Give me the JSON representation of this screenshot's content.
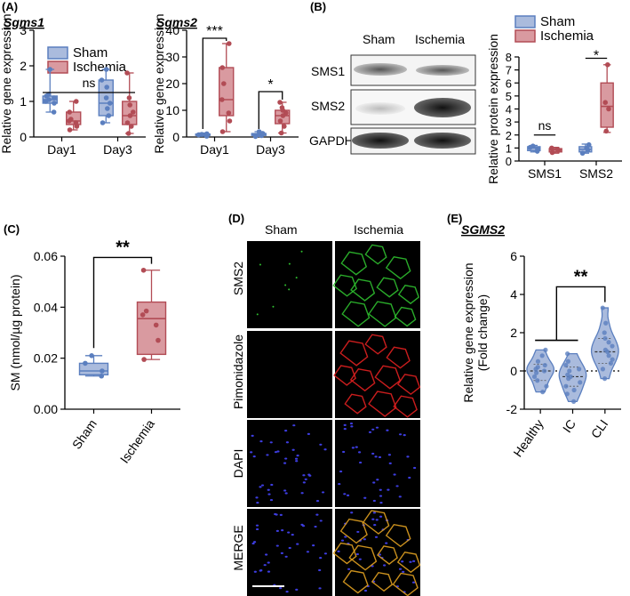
{
  "colors": {
    "sham": "#5b7fbf",
    "sham_fill": "#aabbdd",
    "ischemia": "#b24c55",
    "ischemia_fill": "#d99aa0",
    "green": "#2fbf2f",
    "red": "#e02020",
    "blue": "#3a3ad8"
  },
  "panels": {
    "A": "(A)",
    "B": "(B)",
    "C": "(C)",
    "D": "(D)",
    "E": "(E)"
  },
  "legend": {
    "sham": "Sham",
    "ischemia": "Ischemia"
  },
  "blot": {
    "columns": [
      "Sham",
      "Ischemia"
    ],
    "rows": [
      "SMS1",
      "SMS2",
      "GAPDH"
    ]
  },
  "micro": {
    "columns": [
      "Sham",
      "Ischemia"
    ],
    "rows": [
      "SMS2",
      "Pimonidazole",
      "DAPI",
      "MERGE"
    ]
  },
  "chart_data": [
    {
      "id": "A1",
      "type": "box",
      "title": "Sgms1",
      "xlabel": "",
      "ylabel": "Relative gene expression",
      "ylim": [
        0,
        3
      ],
      "yticks": [
        0,
        1,
        2,
        3
      ],
      "categories": [
        "Day1",
        "Day3"
      ],
      "series": [
        {
          "name": "Sham",
          "boxes": [
            {
              "min": 0.7,
              "q1": 0.95,
              "median": 1.05,
              "q3": 1.15,
              "max": 1.9,
              "points": [
                0.7,
                0.95,
                1.0,
                1.05,
                1.1,
                1.15,
                1.2,
                1.9
              ]
            },
            {
              "min": 0.4,
              "q1": 0.6,
              "median": 0.95,
              "q3": 1.6,
              "max": 1.9,
              "points": [
                0.4,
                0.6,
                0.8,
                0.95,
                1.1,
                1.4,
                1.6,
                1.9
              ]
            }
          ]
        },
        {
          "name": "Ischemia",
          "boxes": [
            {
              "min": 0.2,
              "q1": 0.35,
              "median": 0.45,
              "q3": 0.7,
              "max": 1.0,
              "points": [
                0.2,
                0.3,
                0.4,
                0.45,
                0.5,
                0.7,
                1.0
              ]
            },
            {
              "min": 0.1,
              "q1": 0.35,
              "median": 0.6,
              "q3": 1.0,
              "max": 1.8,
              "points": [
                0.1,
                0.3,
                0.4,
                0.6,
                0.7,
                0.9,
                1.1,
                1.8
              ]
            }
          ]
        }
      ],
      "annotations": [
        {
          "text": "ns",
          "type": "ns"
        }
      ]
    },
    {
      "id": "A2",
      "type": "box",
      "title": "Sgms2",
      "xlabel": "",
      "ylabel": "Relative gene expression",
      "ylim": [
        0,
        40
      ],
      "yticks": [
        0,
        10,
        20,
        30,
        40
      ],
      "categories": [
        "Day1",
        "Day3"
      ],
      "series": [
        {
          "name": "Sham",
          "boxes": [
            {
              "min": 0.3,
              "q1": 0.6,
              "median": 0.8,
              "q3": 1.1,
              "max": 1.5,
              "points": [
                0.3,
                0.6,
                0.8,
                1.0,
                1.2
              ]
            },
            {
              "min": 0.2,
              "q1": 0.6,
              "median": 0.9,
              "q3": 1.3,
              "max": 2.0,
              "points": [
                0.2,
                0.5,
                0.9,
                1.3,
                2.0
              ]
            }
          ]
        },
        {
          "name": "Ischemia",
          "boxes": [
            {
              "min": 2,
              "q1": 8,
              "median": 14,
              "q3": 26,
              "max": 35,
              "points": [
                2,
                6,
                9,
                14,
                20,
                26,
                35
              ]
            },
            {
              "min": 1.5,
              "q1": 5,
              "median": 8,
              "q3": 10,
              "max": 13,
              "points": [
                1.5,
                4,
                6,
                8,
                9,
                10,
                11,
                13
              ]
            }
          ]
        }
      ],
      "annotations": [
        {
          "text": "***"
        },
        {
          "text": "*"
        }
      ]
    },
    {
      "id": "B",
      "type": "box",
      "title": "",
      "xlabel": "",
      "ylabel": "Relative protein expression",
      "ylim": [
        0,
        8
      ],
      "yticks": [
        0,
        1,
        2,
        3,
        4,
        5,
        6,
        7,
        8
      ],
      "categories": [
        "SMS1",
        "SMS2"
      ],
      "series": [
        {
          "name": "Sham",
          "boxes": [
            {
              "min": 0.7,
              "q1": 0.8,
              "median": 1.0,
              "q3": 1.1,
              "max": 1.2,
              "points": [
                0.75,
                0.9,
                1.05,
                1.15
              ]
            },
            {
              "min": 0.6,
              "q1": 0.7,
              "median": 0.9,
              "q3": 1.1,
              "max": 1.3,
              "points": [
                0.6,
                0.85,
                1.0,
                1.25
              ]
            }
          ]
        },
        {
          "name": "Ischemia",
          "boxes": [
            {
              "min": 0.6,
              "q1": 0.7,
              "median": 0.85,
              "q3": 0.95,
              "max": 1.05,
              "points": [
                0.65,
                0.8,
                0.9,
                1.0
              ]
            },
            {
              "min": 2.2,
              "q1": 2.6,
              "median": 4.2,
              "q3": 6.0,
              "max": 7.4,
              "points": [
                2.3,
                4.0,
                4.5,
                7.4
              ]
            }
          ]
        }
      ],
      "annotations": [
        {
          "text": "ns"
        },
        {
          "text": "*"
        }
      ]
    },
    {
      "id": "C",
      "type": "box",
      "title": "",
      "xlabel": "",
      "ylabel": "SM (nmol/µg protein)",
      "ylim": [
        0,
        0.06
      ],
      "yticks": [
        "0.00",
        "0.02",
        "0.04",
        "0.06"
      ],
      "categories": [
        "Sham",
        "Ischemia"
      ],
      "series": [
        {
          "name": "Sham",
          "boxes": [
            {
              "min": 0.013,
              "q1": 0.0135,
              "median": 0.015,
              "q3": 0.018,
              "max": 0.021,
              "points": [
                0.013,
                0.015,
                0.018,
                0.021
              ]
            }
          ]
        },
        {
          "name": "Ischemia",
          "boxes": [
            {
              "min": 0.0195,
              "q1": 0.0215,
              "median": 0.0355,
              "q3": 0.042,
              "max": 0.0545,
              "points": [
                0.0195,
                0.027,
                0.033,
                0.037,
                0.0385,
                0.0545
              ]
            }
          ]
        }
      ],
      "annotations": [
        {
          "text": "**"
        }
      ]
    },
    {
      "id": "E",
      "type": "violin",
      "title": "SGMS2",
      "xlabel": "",
      "ylabel": "Relative gene expression\n(Fold change)",
      "ylim": [
        -2,
        6
      ],
      "yticks": [
        -2,
        0,
        2,
        4,
        6
      ],
      "categories": [
        "Healthy",
        "IC",
        "CLI"
      ],
      "series": [
        {
          "name": "Healthy",
          "median": 0.0,
          "q1": -0.5,
          "q3": 0.35,
          "min": -1.1,
          "max": 1.1,
          "points": [
            -1.1,
            -0.8,
            -0.5,
            -0.3,
            -0.1,
            0.0,
            0.1,
            0.2,
            0.3,
            0.5,
            0.8,
            1.1
          ]
        },
        {
          "name": "IC",
          "median": -0.3,
          "q1": -0.8,
          "q3": 0.2,
          "min": -1.6,
          "max": 0.9,
          "points": [
            -1.6,
            -1.2,
            -1.0,
            -0.8,
            -0.6,
            -0.4,
            -0.3,
            -0.2,
            0.0,
            0.1,
            0.3,
            0.5,
            0.9
          ]
        },
        {
          "name": "CLI",
          "median": 1.0,
          "q1": 0.4,
          "q3": 1.7,
          "min": -0.4,
          "max": 3.3,
          "points": [
            -0.4,
            0.1,
            0.4,
            0.6,
            0.8,
            1.0,
            1.1,
            1.3,
            1.5,
            1.7,
            2.0,
            2.5,
            3.3
          ]
        }
      ],
      "annotations": [
        {
          "text": "**"
        }
      ]
    }
  ]
}
